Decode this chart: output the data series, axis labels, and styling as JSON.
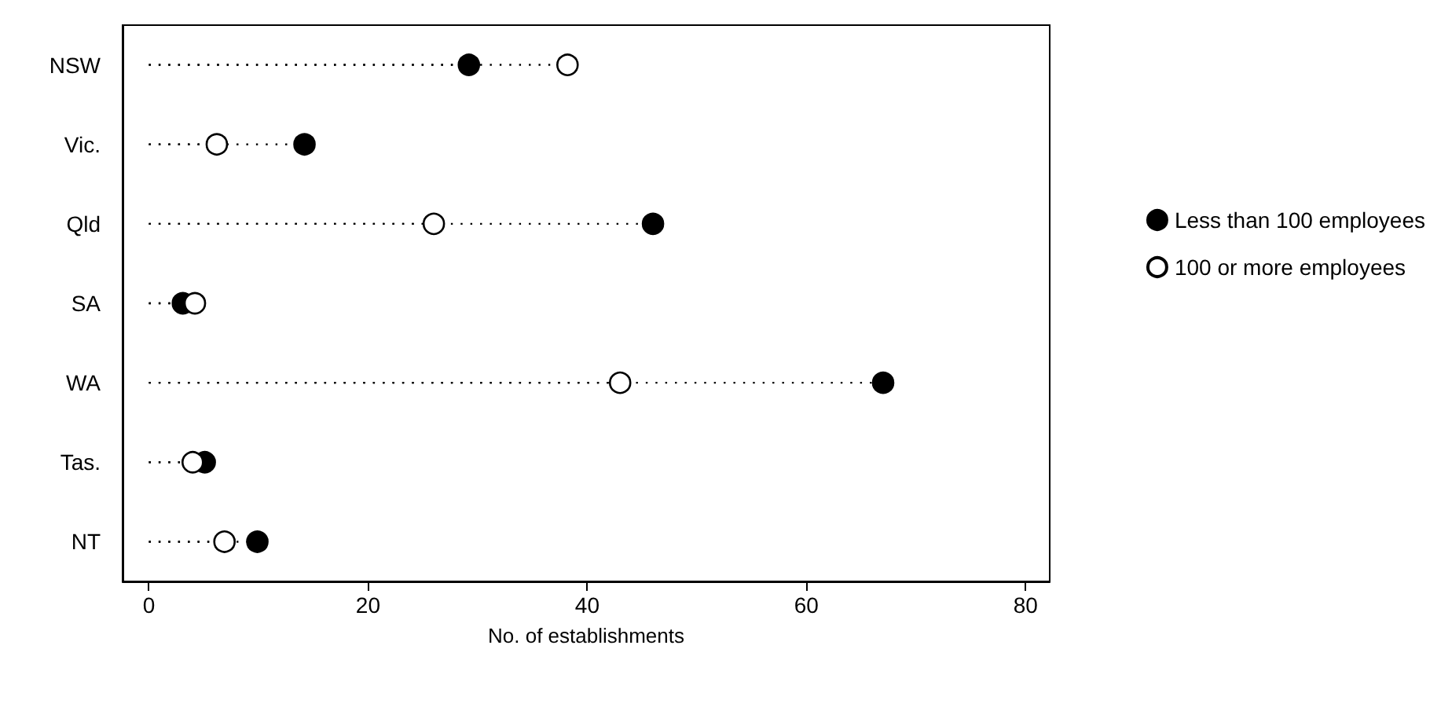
{
  "chart_data": {
    "type": "lollipop",
    "orientation": "horizontal",
    "xlabel": "No. of establishments",
    "categories": [
      "NSW",
      "Vic.",
      "Qld",
      "SA",
      "WA",
      "Tas.",
      "NT"
    ],
    "series": [
      {
        "name": "Less than 100 employees",
        "color": "#000000",
        "values": [
          29.2,
          14.2,
          46.0,
          3.1,
          67.0,
          5.1,
          9.9
        ]
      },
      {
        "name": "100 or more employees",
        "color": "#ffffff",
        "values": [
          38.2,
          6.2,
          26.0,
          4.2,
          43.0,
          4.0,
          6.9
        ]
      }
    ],
    "xlim": [
      -2.4,
      82.2
    ],
    "xticks": [
      0,
      20,
      40,
      60,
      80
    ],
    "marker": "circle",
    "line_style": "dotted",
    "legend": "right",
    "grid": false
  }
}
